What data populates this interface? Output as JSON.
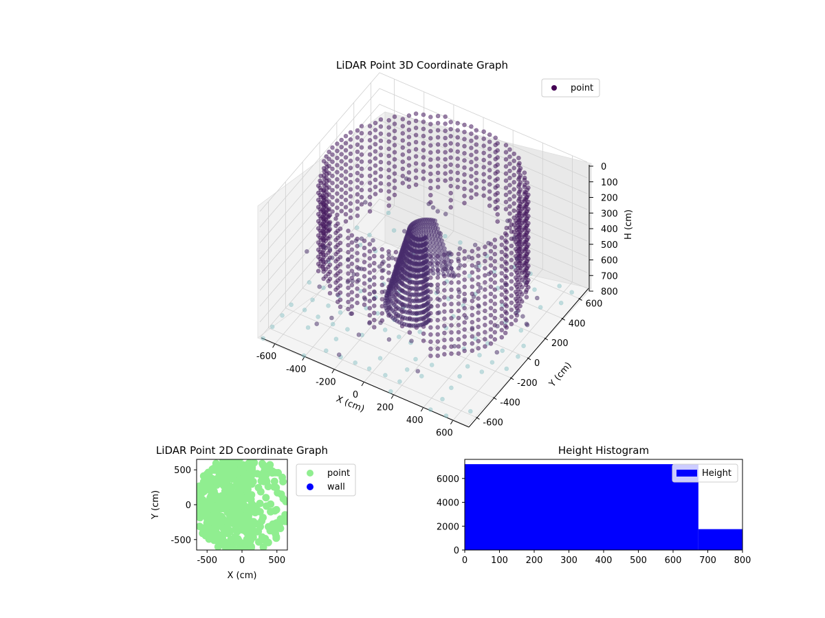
{
  "chart_data": [
    {
      "type": "scatter3d",
      "title": "LiDAR Point 3D Coordinate Graph",
      "xlabel": "X (cm)",
      "ylabel": "Y (cm)",
      "zlabel": "H (cm)",
      "xlim": [
        -700,
        700
      ],
      "ylim": [
        -700,
        700
      ],
      "zlim": [
        800,
        0
      ],
      "x_ticks": [
        -600,
        -400,
        -200,
        0,
        200,
        400,
        600
      ],
      "y_ticks": [
        -600,
        -400,
        -200,
        0,
        200,
        400,
        600
      ],
      "z_ticks": [
        0,
        100,
        200,
        300,
        400,
        500,
        600,
        700,
        800
      ],
      "legend": {
        "position": "top-right",
        "entries": [
          "point"
        ]
      },
      "series": [
        {
          "name": "point",
          "color": "#440154",
          "description_values": {
            "ring_radius_cm": 600,
            "height_range_cm": [
              0,
              800
            ]
          }
        }
      ],
      "grid": true
    },
    {
      "type": "scatter",
      "title": "LiDAR Point 2D Coordinate Graph",
      "xlabel": "X (cm)",
      "ylabel": "Y (cm)",
      "xlim": [
        -650,
        650
      ],
      "ylim": [
        -650,
        650
      ],
      "x_ticks": [
        -500,
        0,
        500
      ],
      "y_ticks": [
        -500,
        0,
        500
      ],
      "legend": {
        "position": "right-outside",
        "entries": [
          "point",
          "wall"
        ]
      },
      "series": [
        {
          "name": "point",
          "color": "#90ee90"
        },
        {
          "name": "wall",
          "color": "#0000ff"
        }
      ]
    },
    {
      "type": "bar",
      "title": "Height Histogram",
      "xlabel": "",
      "ylabel": "",
      "xlim": [
        0,
        800
      ],
      "ylim": [
        0,
        7600
      ],
      "x_ticks": [
        0,
        100,
        200,
        300,
        400,
        500,
        600,
        700,
        800
      ],
      "y_ticks": [
        0,
        2000,
        4000,
        6000
      ],
      "bins": [
        {
          "start": 0,
          "end": 673,
          "count": 7200
        },
        {
          "start": 673,
          "end": 800,
          "count": 1750
        }
      ],
      "legend": {
        "position": "top-right",
        "entries": [
          "Height"
        ]
      },
      "series": [
        {
          "name": "Height",
          "color": "#0000ff"
        }
      ]
    }
  ]
}
